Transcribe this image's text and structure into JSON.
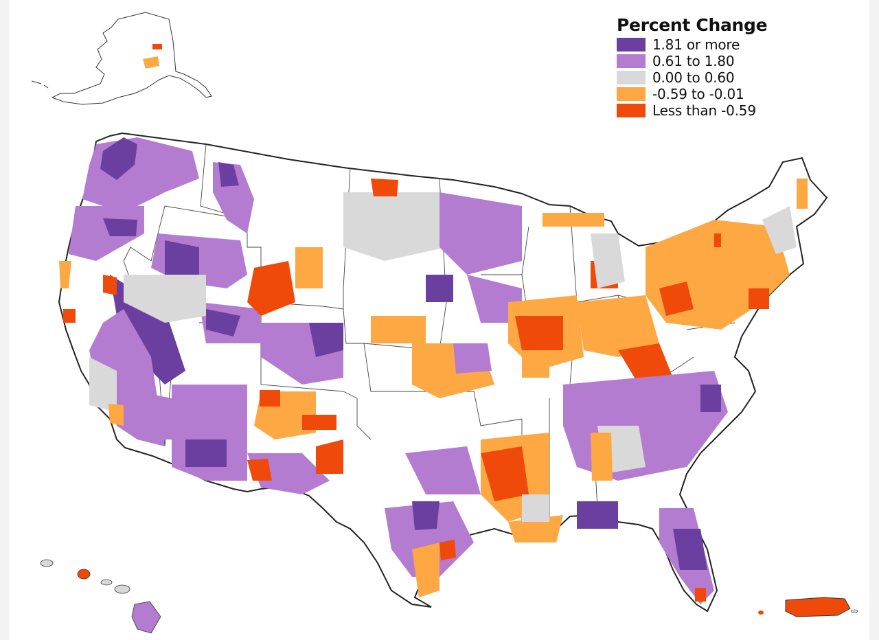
{
  "legend": {
    "title": "Percent Change",
    "items": [
      {
        "label": "1.81 or more",
        "color": "#6b3fa0"
      },
      {
        "label": "0.61 to 1.80",
        "color": "#b37cd0"
      },
      {
        "label": "0.00 to 0.60",
        "color": "#d9d9d9"
      },
      {
        "label": "-0.59 to -0.01",
        "color": "#fda843"
      },
      {
        "label": "Less than -0.59",
        "color": "#f04a0a"
      }
    ]
  },
  "colors": {
    "no_data": "#ffffff",
    "border": "#333333",
    "background": "#f3f3f3"
  },
  "regions": [
    {
      "name": "Alaska",
      "category": "none"
    },
    {
      "name": "Hawaii",
      "category": "mixed"
    },
    {
      "name": "Contiguous United States",
      "category": "mixed"
    },
    {
      "name": "Puerto Rico",
      "category": "Less than -0.59"
    }
  ]
}
